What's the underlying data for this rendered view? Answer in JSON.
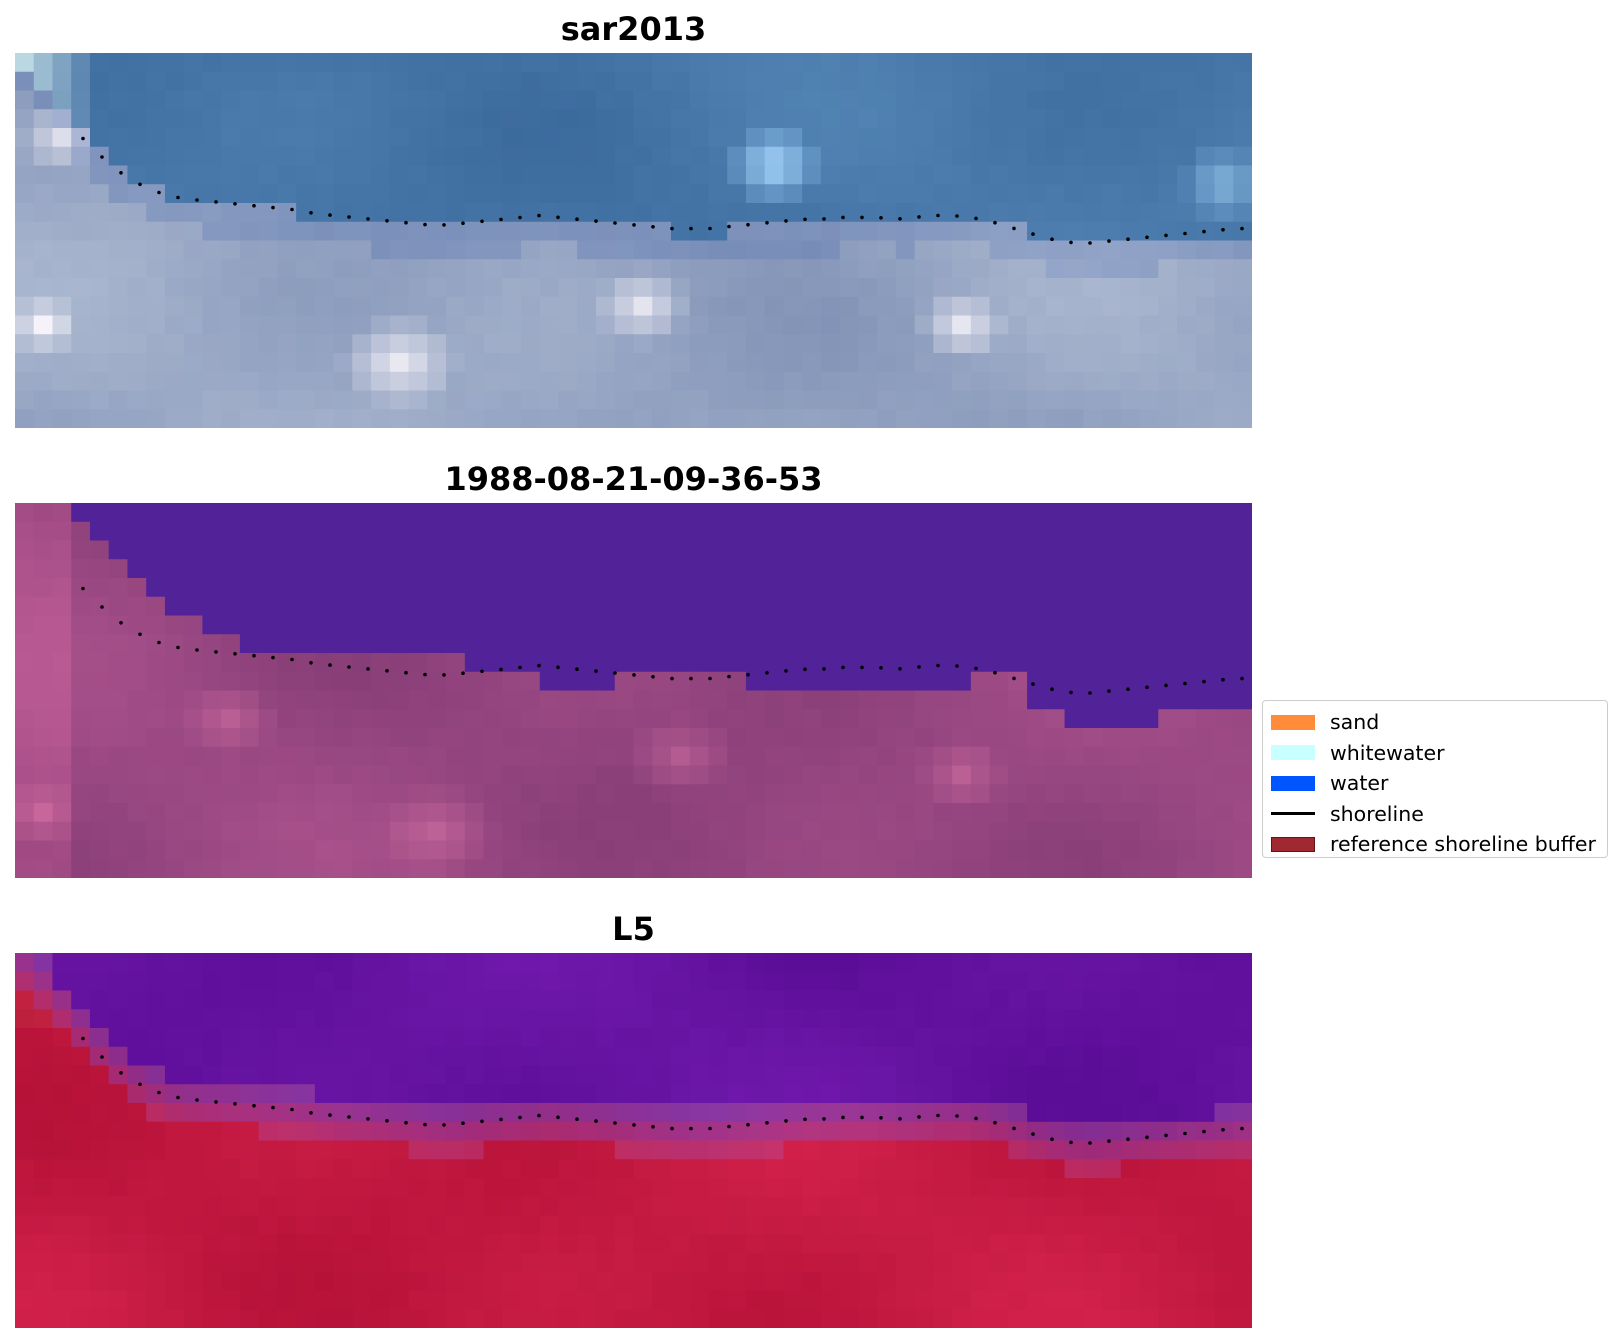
{
  "panels": [
    {
      "title": "sar2013",
      "rendering": "rgb"
    },
    {
      "title": "1988-08-21-09-36-53",
      "rendering": "classification"
    },
    {
      "title": "L5",
      "rendering": "index"
    }
  ],
  "legend": {
    "items": [
      {
        "label": "sand",
        "kind": "patch",
        "color": "#ff8c3a"
      },
      {
        "label": "whitewater",
        "kind": "patch",
        "color": "#c8ffff"
      },
      {
        "label": "water",
        "kind": "patch",
        "color": "#0055ff"
      },
      {
        "label": "shoreline",
        "kind": "line",
        "color": "#000000"
      },
      {
        "label": "reference shoreline buffer",
        "kind": "patch",
        "color": "#a02830",
        "edge": "#6b0f14"
      }
    ]
  }
}
